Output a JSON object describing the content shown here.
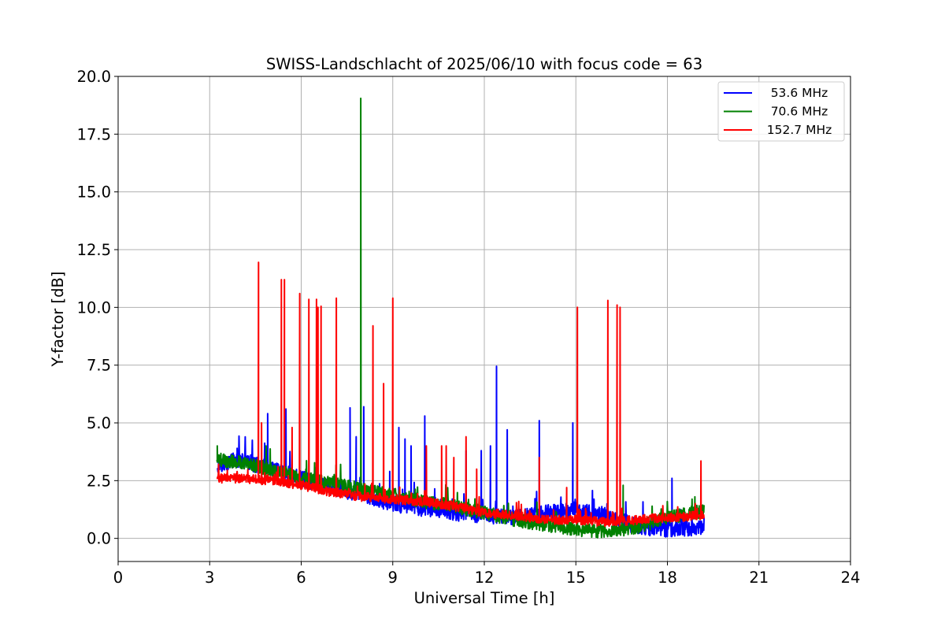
{
  "chart_data": {
    "type": "line",
    "title": "SWISS-Landschlacht of 2025/06/10 with focus code = 63",
    "xlabel": "Universal Time [h]",
    "ylabel": "Y-factor [dB]",
    "xlim": [
      0,
      24
    ],
    "ylim": [
      -1,
      20
    ],
    "xticks": [
      0,
      3,
      6,
      9,
      12,
      15,
      18,
      21,
      24
    ],
    "xtick_labels": [
      "0",
      "3",
      "6",
      "9",
      "12",
      "15",
      "18",
      "21",
      "24"
    ],
    "yticks": [
      0,
      2.5,
      5,
      7.5,
      10,
      12.5,
      15,
      17.5,
      20
    ],
    "ytick_labels": [
      "0.0",
      "2.5",
      "5.0",
      "7.5",
      "10.0",
      "12.5",
      "15.0",
      "17.5",
      "20.0"
    ],
    "grid": true,
    "legend_position": "top-right",
    "series": [
      {
        "name": "53.6 MHz",
        "color": "#0000ff",
        "baseline": {
          "x": [
            3.25,
            4.0,
            5.0,
            6.0,
            7.0,
            8.0,
            9.0,
            10.0,
            11.0,
            12.0,
            13.0,
            14.0,
            15.0,
            16.0,
            17.0,
            18.0,
            19.2
          ],
          "y": [
            3.2,
            3.4,
            3.0,
            2.6,
            2.2,
            1.9,
            1.5,
            1.3,
            1.1,
            1.0,
            0.9,
            1.1,
            1.2,
            1.0,
            0.5,
            0.4,
            0.5
          ]
        },
        "noise": 0.35,
        "spikes": [
          [
            3.9,
            3.9
          ],
          [
            4.9,
            5.4
          ],
          [
            5.5,
            5.6
          ],
          [
            7.6,
            5.65
          ],
          [
            7.8,
            4.4
          ],
          [
            8.05,
            5.7
          ],
          [
            8.9,
            2.9
          ],
          [
            9.2,
            4.8
          ],
          [
            9.4,
            4.3
          ],
          [
            9.6,
            4.0
          ],
          [
            10.05,
            5.3
          ],
          [
            11.4,
            3.8
          ],
          [
            11.9,
            3.8
          ],
          [
            12.2,
            4.0
          ],
          [
            12.4,
            7.45
          ],
          [
            12.75,
            4.7
          ],
          [
            13.8,
            5.1
          ],
          [
            14.9,
            5.0
          ],
          [
            18.15,
            2.6
          ]
        ]
      },
      {
        "name": "70.6 MHz",
        "color": "#008000",
        "baseline": {
          "x": [
            3.25,
            4.0,
            5.0,
            6.0,
            7.0,
            8.0,
            9.0,
            10.0,
            11.0,
            12.0,
            13.0,
            14.0,
            15.0,
            16.0,
            17.0,
            18.0,
            19.2
          ],
          "y": [
            3.4,
            3.3,
            3.0,
            2.6,
            2.4,
            2.1,
            1.9,
            1.6,
            1.4,
            1.1,
            0.8,
            0.6,
            0.4,
            0.3,
            0.5,
            0.9,
            1.2
          ]
        },
        "noise": 0.3,
        "spikes": [
          [
            3.25,
            4.0
          ],
          [
            4.85,
            4.0
          ],
          [
            7.95,
            19.05
          ],
          [
            16.55,
            2.3
          ],
          [
            18.0,
            1.5
          ],
          [
            18.9,
            1.8
          ]
        ]
      },
      {
        "name": "152.7 MHz",
        "color": "#ff0000",
        "baseline": {
          "x": [
            3.25,
            4.0,
            5.0,
            6.0,
            7.0,
            8.0,
            9.0,
            10.0,
            11.0,
            12.0,
            13.0,
            14.0,
            15.0,
            16.0,
            17.0,
            18.0,
            19.2
          ],
          "y": [
            2.6,
            2.6,
            2.5,
            2.3,
            2.0,
            1.8,
            1.7,
            1.6,
            1.4,
            1.1,
            1.0,
            0.8,
            0.8,
            0.7,
            0.8,
            0.9,
            1.0
          ]
        },
        "noise": 0.2,
        "spikes": [
          [
            4.6,
            11.95
          ],
          [
            4.7,
            5.0
          ],
          [
            5.35,
            11.2
          ],
          [
            5.45,
            11.2
          ],
          [
            5.7,
            4.8
          ],
          [
            5.95,
            10.6
          ],
          [
            6.25,
            10.35
          ],
          [
            6.5,
            10.35
          ],
          [
            6.55,
            10.0
          ],
          [
            6.65,
            10.05
          ],
          [
            7.15,
            10.4
          ],
          [
            8.35,
            9.2
          ],
          [
            8.7,
            6.7
          ],
          [
            9.0,
            10.4
          ],
          [
            10.1,
            4.0
          ],
          [
            10.6,
            4.0
          ],
          [
            10.75,
            4.0
          ],
          [
            11.0,
            3.5
          ],
          [
            11.4,
            4.4
          ],
          [
            11.75,
            3.0
          ],
          [
            13.8,
            3.5
          ],
          [
            14.7,
            2.2
          ],
          [
            15.05,
            10.0
          ],
          [
            16.05,
            10.3
          ],
          [
            16.35,
            10.1
          ],
          [
            16.45,
            10.0
          ],
          [
            19.1,
            3.35
          ]
        ]
      }
    ]
  }
}
